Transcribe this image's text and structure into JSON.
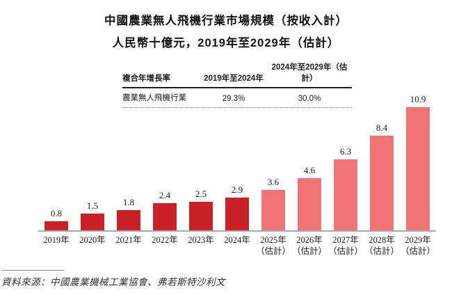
{
  "title": {
    "line1": "中國農業無人飛機行業市場規模（按收入計）",
    "line2": "人民幣十億元，2019年至2029年（估計）"
  },
  "cagr_table": {
    "header": [
      "複合年增長率",
      "2019年至2024年",
      "2024年至2029年（估計）"
    ],
    "rows": [
      [
        "農業無人飛機行業",
        "29.3%",
        "30.0%"
      ]
    ]
  },
  "chart_data": {
    "type": "bar",
    "title": "中國農業無人飛機行業市場規模（按收入計）",
    "ylabel": "人民幣十億元",
    "categories": [
      "2019年",
      "2020年",
      "2021年",
      "2022年",
      "2023年",
      "2024年",
      "2025年",
      "2026年",
      "2027年",
      "2028年",
      "2029年"
    ],
    "category_notes": [
      "",
      "",
      "",
      "",
      "",
      "",
      "（估計）",
      "（估計）",
      "（估計）",
      "（估計）",
      "（估計）"
    ],
    "values": [
      0.8,
      1.5,
      1.8,
      2.4,
      2.5,
      2.9,
      3.6,
      4.6,
      6.3,
      8.4,
      10.9
    ],
    "series_name": "農業無人飛機行業",
    "estimate_start_index": 6,
    "ylim": [
      0,
      11
    ],
    "grid": false,
    "legend": "none",
    "colors": {
      "actual": "#ca2128",
      "estimate": "#f07474",
      "axis": "#a8a8a8"
    }
  },
  "source": {
    "text": "資料來源：中國農業機械工業協會、弗若斯特沙利文"
  }
}
